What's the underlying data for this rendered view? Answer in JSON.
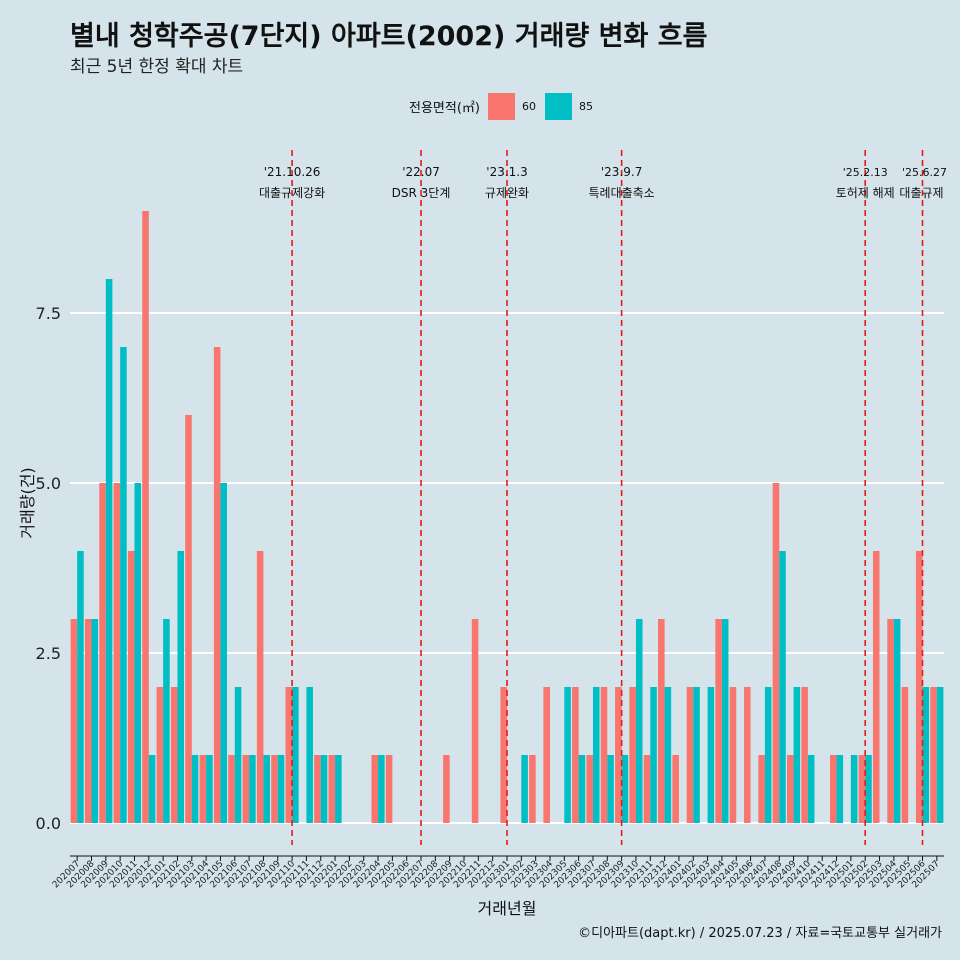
{
  "title": "별내 청학주공(7단지) 아파트(2002) 거래량 변화 흐름",
  "subtitle": "최근 5년 한정 확대 차트",
  "caption": "©디아파트(dapt.kr) / 2025.07.23 / 자료=국토교통부 실거래가",
  "colors": {
    "s60": "#f8766d",
    "s85": "#00bfc4",
    "vline": "#e41a1c",
    "grid": "#ffffff"
  },
  "chart_data": {
    "type": "bar",
    "xlabel": "거래년월",
    "ylabel": "거래량(건)",
    "ylim": [
      -0.4,
      9.0
    ],
    "yticks": [
      0.0,
      2.5,
      5.0,
      7.5
    ],
    "ytick_labels": [
      "0.0",
      "2.5",
      "5.0",
      "7.5"
    ],
    "legend_title": "전용면적(㎡)",
    "categories": [
      "202007",
      "202008",
      "202009",
      "202010",
      "202011",
      "202012",
      "202101",
      "202102",
      "202103",
      "202104",
      "202105",
      "202106",
      "202107",
      "202108",
      "202109",
      "202110",
      "202111",
      "202112",
      "202201",
      "202202",
      "202203",
      "202204",
      "202205",
      "202206",
      "202207",
      "202208",
      "202209",
      "202210",
      "202211",
      "202212",
      "202301",
      "202302",
      "202303",
      "202304",
      "202305",
      "202306",
      "202307",
      "202308",
      "202309",
      "202310",
      "202311",
      "202312",
      "202401",
      "202402",
      "202403",
      "202404",
      "202405",
      "202406",
      "202407",
      "202408",
      "202409",
      "202410",
      "202411",
      "202412",
      "202501",
      "202502",
      "202503",
      "202504",
      "202505",
      "202506",
      "202507"
    ],
    "series": [
      {
        "name": "60",
        "values": [
          3,
          3,
          5,
          5,
          4,
          9,
          2,
          2,
          6,
          1,
          7,
          1,
          1,
          4,
          1,
          2,
          0,
          1,
          1,
          0,
          0,
          1,
          1,
          0,
          0,
          0,
          1,
          0,
          3,
          0,
          2,
          0,
          1,
          2,
          0,
          2,
          1,
          2,
          2,
          2,
          1,
          3,
          1,
          2,
          0,
          3,
          2,
          2,
          1,
          5,
          1,
          2,
          0,
          1,
          0,
          1,
          4,
          3,
          2,
          4,
          2
        ]
      },
      {
        "name": "85",
        "values": [
          4,
          3,
          8,
          7,
          5,
          1,
          3,
          4,
          1,
          1,
          5,
          2,
          1,
          1,
          1,
          2,
          2,
          1,
          1,
          0,
          0,
          1,
          0,
          0,
          0,
          0,
          0,
          0,
          0,
          0,
          0,
          1,
          0,
          0,
          2,
          1,
          2,
          1,
          1,
          3,
          2,
          2,
          0,
          2,
          2,
          3,
          0,
          0,
          2,
          4,
          2,
          1,
          0,
          1,
          1,
          1,
          0,
          3,
          0,
          2,
          2
        ]
      }
    ],
    "events": [
      {
        "index": 15.5,
        "date": "'21.10.26",
        "label": "대출규제강화"
      },
      {
        "index": 24.5,
        "date": "'22.07",
        "label": "DSR 3단계"
      },
      {
        "index": 30.5,
        "date": "'23.1.3",
        "label": "규제완화"
      },
      {
        "index": 38.5,
        "date": "'23.9.7",
        "label": "특례대출축소"
      },
      {
        "index": 55.5,
        "date": "'25.2.13",
        "label": "토허제 해제"
      },
      {
        "index": 59.5,
        "date": "'25.6.27",
        "label": "대출규제"
      }
    ]
  }
}
